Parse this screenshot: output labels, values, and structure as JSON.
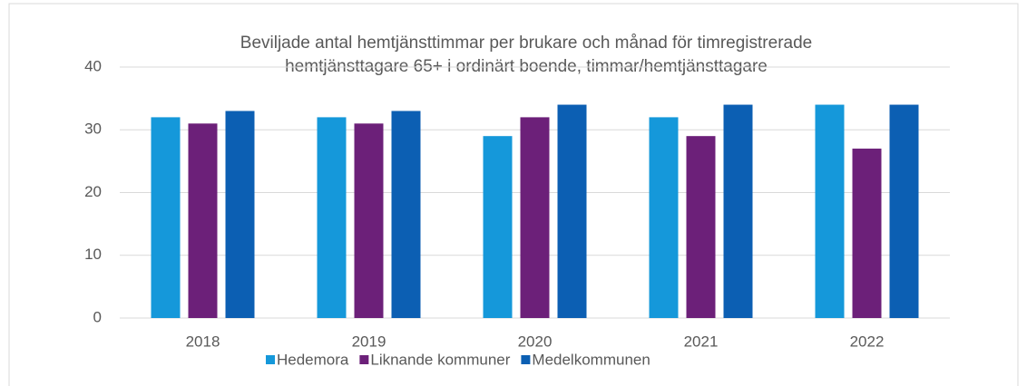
{
  "chart_data": {
    "type": "bar",
    "title": [
      "Beviljade antal hemtjänsttimmar per brukare och månad för timregistrerade",
      "hemtjänsttagare 65+ i ordinärt boende, timmar/hemtjänsttagare"
    ],
    "categories": [
      "2018",
      "2019",
      "2020",
      "2021",
      "2022"
    ],
    "series": [
      {
        "name": "Hedemora",
        "color": "#1598da",
        "values": [
          32,
          32,
          29,
          32,
          34
        ]
      },
      {
        "name": "Liknande kommuner",
        "color": "#6c2079",
        "values": [
          31,
          31,
          32,
          29,
          27
        ]
      },
      {
        "name": "Medelkommunen",
        "color": "#0c5fb3",
        "values": [
          33,
          33,
          34,
          34,
          34
        ]
      }
    ],
    "ylim": [
      0,
      40
    ],
    "yticks": [
      0,
      10,
      20,
      30,
      40
    ],
    "grid": true,
    "legend": "bottom"
  }
}
